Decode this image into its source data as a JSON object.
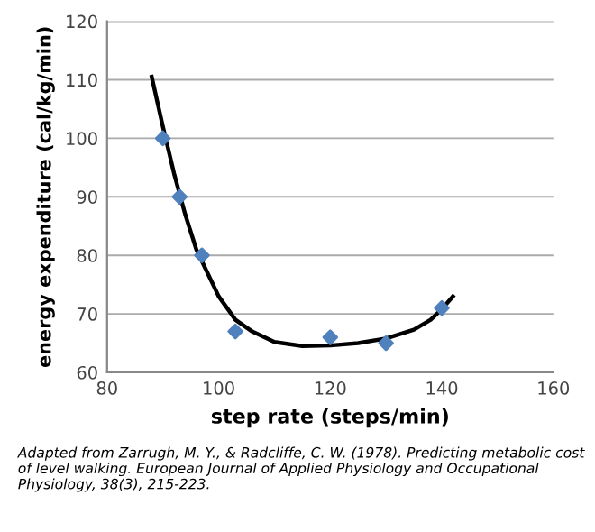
{
  "chart_data": {
    "type": "scatter",
    "xlabel": "step rate (steps/min)",
    "ylabel": "energy expenditure (cal/kg/min)",
    "xlim": [
      80,
      160
    ],
    "xticks": [
      80,
      100,
      120,
      140,
      160
    ],
    "ylim": [
      60,
      120
    ],
    "yticks": [
      60,
      70,
      80,
      90,
      100,
      110,
      120
    ],
    "grid": "y",
    "marker": "diamond",
    "series": [
      {
        "color": "#4f81bd",
        "x": [
          90,
          93,
          97,
          103,
          120,
          130,
          140
        ],
        "values": [
          100,
          90,
          80,
          67,
          66,
          65,
          71
        ]
      },
      {
        "type": "line",
        "color": "#000000",
        "line_style": "solid",
        "marker": "none",
        "x": [
          88,
          90,
          92,
          94,
          96,
          98,
          100,
          103,
          106,
          110,
          115,
          120,
          125,
          130,
          135,
          138,
          140,
          142
        ],
        "values": [
          110.5,
          102,
          94,
          87,
          81,
          77,
          73,
          69,
          67,
          65.2,
          64.5,
          64.6,
          65.0,
          65.8,
          67.3,
          69,
          70.8,
          73
        ]
      }
    ],
    "annotations": [
      "Adapted from Zarrugh, M. Y., & Radcliffe, C. W. (1978). Predicting metabolic cost of level walking. European Journal of Applied Physiology and Occupational Physiology, 38(3), 215-223."
    ]
  }
}
